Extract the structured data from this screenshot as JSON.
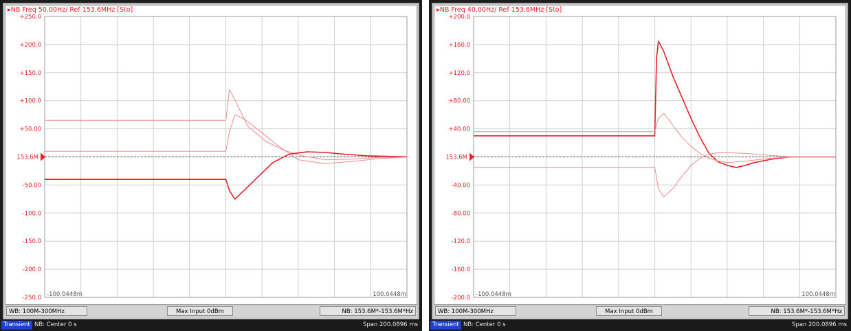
{
  "colors": {
    "trace": "#e8202a",
    "trace_light": "#f28a8f",
    "grid": "#cfcfcf",
    "axis_text": "#e8202a"
  },
  "panels": [
    {
      "title": "▸NB Freq 50.00Hz/ Ref 153.6MHz [Sto]",
      "ref_label": "153.6M",
      "x_left": "-100.0448m",
      "x_right": "100.0448m",
      "status": {
        "wb": "WB: 100M-300MHz",
        "max_input": "Max Input 0dBm",
        "nb": "NB: 153.6M*-153.6M*Hz",
        "mode": "Transient",
        "nb_center": "NB: Center 0 s",
        "span": "Span 200.0896 ms"
      }
    },
    {
      "title": "▸NB Freq 40.00Hz/ Ref 153.6MHz [Sto]",
      "ref_label": "153.6M",
      "x_left": "-100.0448m",
      "x_right": "100.0448m",
      "status": {
        "wb": "WB: 100M-300MHz",
        "max_input": "Max Input 0dBm",
        "nb": "NB: 153.6M*-153.6M*Hz",
        "mode": "Transient",
        "nb_center": "NB: Center 0 s",
        "span": "Span 200.0896 ms"
      }
    }
  ],
  "chart_data": [
    {
      "type": "line",
      "title": "NB Freq 50.00Hz/ Ref 153.6MHz [Sto]",
      "xlabel": "",
      "ylabel": "",
      "xlim": [
        -100.0448,
        100.0448
      ],
      "ylim": [
        -250,
        250
      ],
      "y_ticks": [
        {
          "v": 250,
          "label": "+250.0"
        },
        {
          "v": 200,
          "label": "+200.0"
        },
        {
          "v": 150,
          "label": "+150.0"
        },
        {
          "v": 100,
          "label": "+100.0"
        },
        {
          "v": 50,
          "label": "+50.00"
        },
        {
          "v": -50,
          "label": "-50.00"
        },
        {
          "v": -100,
          "label": "-100.0"
        },
        {
          "v": -150,
          "label": "-150.0"
        },
        {
          "v": -200,
          "label": "-200.0"
        },
        {
          "v": -250,
          "label": "-250.0"
        }
      ],
      "ref_y": 0,
      "grid": true,
      "series": [
        {
          "style": "light",
          "x": [
            -100,
            -1,
            0,
            2,
            6,
            12,
            22,
            32,
            42,
            55,
            70,
            85,
            100
          ],
          "y": [
            65,
            65,
            65,
            120,
            95,
            55,
            28,
            12,
            2,
            -5,
            -4,
            -1,
            0
          ]
        },
        {
          "style": "light",
          "x": [
            -100,
            -1,
            0,
            2,
            5,
            10,
            18,
            28,
            40,
            55,
            70,
            85,
            100
          ],
          "y": [
            10,
            10,
            10,
            45,
            75,
            68,
            48,
            22,
            -5,
            -12,
            -8,
            -3,
            0
          ]
        },
        {
          "style": "dark",
          "x": [
            -100,
            -1,
            0,
            2,
            5,
            10,
            18,
            26,
            35,
            45,
            55,
            65,
            78,
            90,
            100
          ],
          "y": [
            -40,
            -40,
            -40,
            -60,
            -75,
            -60,
            -35,
            -10,
            5,
            9,
            8,
            5,
            2,
            1,
            0
          ]
        }
      ]
    },
    {
      "type": "line",
      "title": "NB Freq 40.00Hz/ Ref 153.6MHz [Sto]",
      "xlabel": "",
      "ylabel": "",
      "xlim": [
        -100.0448,
        100.0448
      ],
      "ylim": [
        -200,
        200
      ],
      "y_ticks": [
        {
          "v": 200,
          "label": "+200.0"
        },
        {
          "v": 160,
          "label": "+160.0"
        },
        {
          "v": 120,
          "label": "+120.0"
        },
        {
          "v": 80,
          "label": "+80.00"
        },
        {
          "v": 40,
          "label": "+40.00"
        },
        {
          "v": -40,
          "label": "-40.00"
        },
        {
          "v": -80,
          "label": "-80.00"
        },
        {
          "v": -120,
          "label": "-120.0"
        },
        {
          "v": -160,
          "label": "-160.0"
        },
        {
          "v": -200,
          "label": "-200.0"
        }
      ],
      "ref_y": 0,
      "grid": true,
      "series": [
        {
          "style": "dark",
          "x": [
            -100,
            -1,
            0,
            1,
            2,
            5,
            10,
            15,
            20,
            25,
            30,
            35,
            40,
            45,
            50,
            55,
            65,
            75,
            90,
            100
          ],
          "y": [
            30,
            30,
            30,
            140,
            165,
            150,
            115,
            85,
            55,
            28,
            5,
            -7,
            -12,
            -15,
            -12,
            -8,
            -3,
            0,
            0,
            0
          ]
        },
        {
          "style": "light",
          "x": [
            -100,
            -1,
            0,
            2,
            5,
            10,
            15,
            20,
            25,
            30,
            35,
            40,
            50,
            60,
            70,
            80,
            100
          ],
          "y": [
            36,
            36,
            36,
            55,
            62,
            45,
            28,
            15,
            5,
            -2,
            -6,
            -8,
            -6,
            -3,
            -1,
            0,
            0
          ]
        },
        {
          "style": "light",
          "x": [
            -100,
            -1,
            0,
            2,
            5,
            10,
            15,
            20,
            25,
            30,
            35,
            40,
            50,
            60,
            70,
            80,
            100
          ],
          "y": [
            -15,
            -15,
            -15,
            -45,
            -57,
            -45,
            -28,
            -12,
            -2,
            4,
            6,
            6,
            5,
            3,
            1,
            0,
            0
          ]
        }
      ]
    }
  ]
}
